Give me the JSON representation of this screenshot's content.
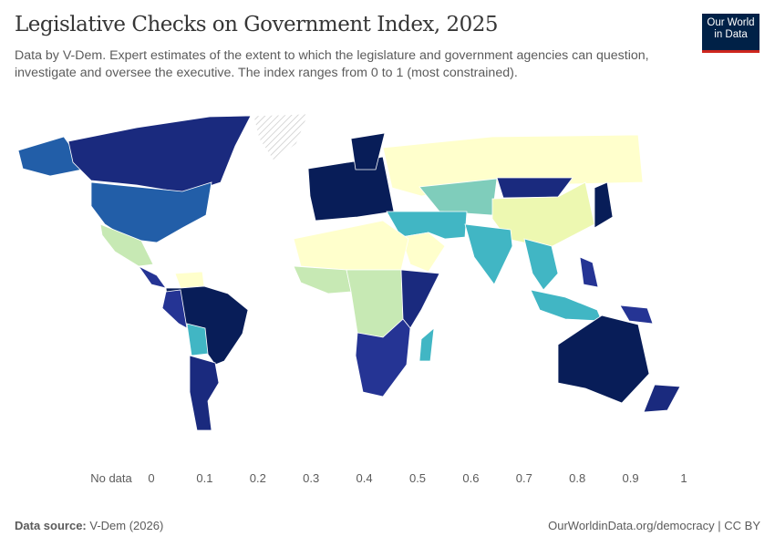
{
  "header": {
    "title": "Legislative Checks on Government Index, 2025",
    "subtitle": "Data by V-Dem. Expert estimates of the extent to which the legislature and government agencies can question, investigate and oversee the executive. The index ranges from 0 to 1 (most constrained).",
    "logo_line1": "Our World",
    "logo_line2": "in Data"
  },
  "legend": {
    "no_data_label": "No data",
    "ticks": [
      "0",
      "0.1",
      "0.2",
      "0.3",
      "0.4",
      "0.5",
      "0.6",
      "0.7",
      "0.8",
      "0.9",
      "1"
    ],
    "colors": [
      "#ffffcc",
      "#edf8b1",
      "#c7e9b4",
      "#7fcdbb",
      "#41b6c4",
      "#1d91c0",
      "#225ea8",
      "#253494",
      "#1a2a7e",
      "#081d58"
    ]
  },
  "map_values": {
    "canada": 0.85,
    "alaska": 0.65,
    "usa": 0.65,
    "mexico": 0.25,
    "central_america": 0.75,
    "south_america": 0.95,
    "venezuela": 0.05,
    "peru": 0.75,
    "bolivia": 0.45,
    "argentina": 0.85,
    "europe": 0.9,
    "scandinavia": 0.95,
    "russia": 0.05,
    "central_asia": 0.35,
    "mongolia": 0.85,
    "china": 0.15,
    "japan": 0.95,
    "middle_east": 0.45,
    "saudi_arabia": 0.05,
    "india": 0.45,
    "africa_north": 0.05,
    "africa_west": 0.25,
    "africa_central": 0.25,
    "africa_east": 0.85,
    "africa_south": 0.75,
    "madagascar": 0.45,
    "southeast_asia": 0.45,
    "indonesia": 0.45,
    "philippines": 0.75,
    "png": 0.75,
    "australia": 0.95,
    "new_zealand": 0.85
  },
  "footer": {
    "source_label": "Data source:",
    "source_value": "V-Dem (2026)",
    "url": "OurWorldinData.org/democracy | CC BY"
  }
}
